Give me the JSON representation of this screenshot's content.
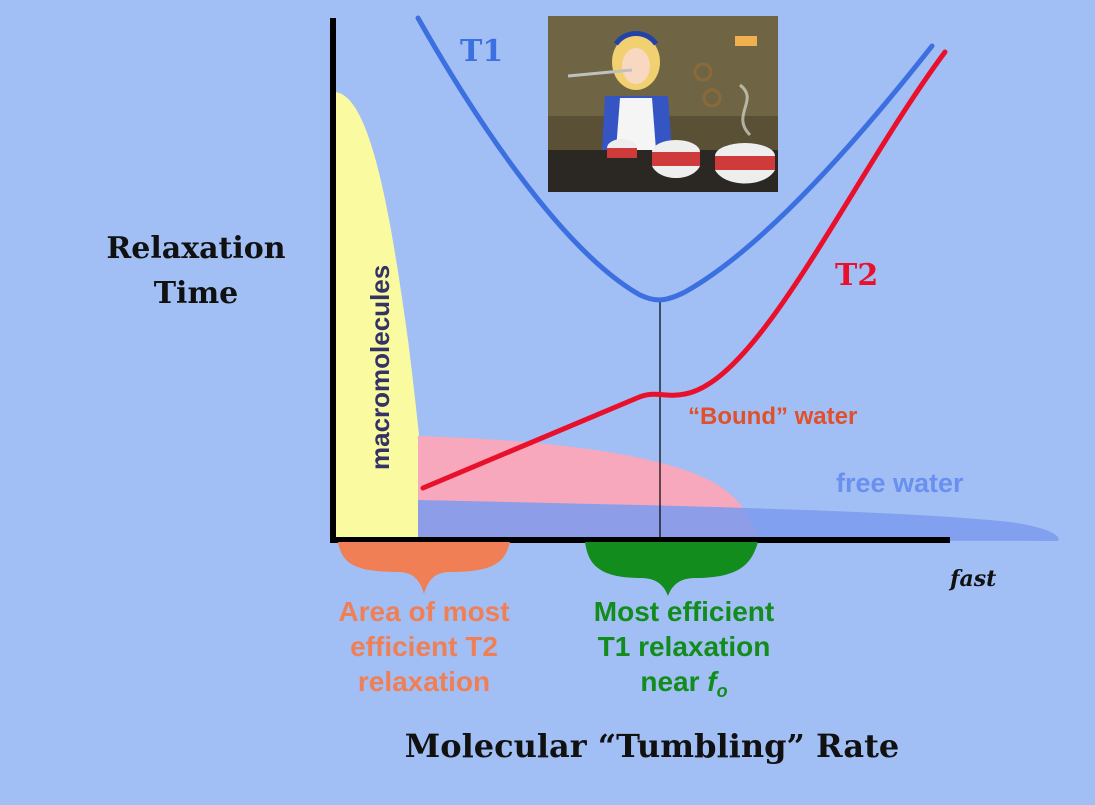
{
  "diagram": {
    "y_axis_label_line1": "Relaxation",
    "y_axis_label_line2": "Time",
    "x_axis_label": "Molecular “Tumbling” Rate",
    "x_axis_end_label": "fast",
    "curve_t1_label": "T1",
    "curve_t2_label": "T2",
    "macromolecules_label": "macromolecules",
    "bound_water_label": "“Bound” water",
    "free_water_label": "free water",
    "t2_region_line1": "Area of most",
    "t2_region_line2": "efficient T2",
    "t2_region_line3": "relaxation",
    "t1_region_line1": "Most efficient",
    "t1_region_line2": "T1 relaxation",
    "t1_region_line3_prefix": "near ",
    "t1_region_symbol": "f",
    "t1_region_subscript": "o",
    "colors": {
      "background": "#a2bff5",
      "axis": "#000000",
      "t1_curve": "#3c6fe0",
      "t2_curve": "#e8102a",
      "macromolecules_fill": "#fafaa0",
      "bound_water_fill": "#f7a8bc",
      "free_water_fill": "#7b9bef",
      "t2_region": "#f07f55",
      "t1_region": "#128c1d",
      "bound_water_text": "#e0502a",
      "free_water_text": "#6a90ef",
      "macromolecules_text": "#333366"
    }
  },
  "inset_image": {
    "icon": "cartoon-still-icon",
    "caption": ""
  }
}
